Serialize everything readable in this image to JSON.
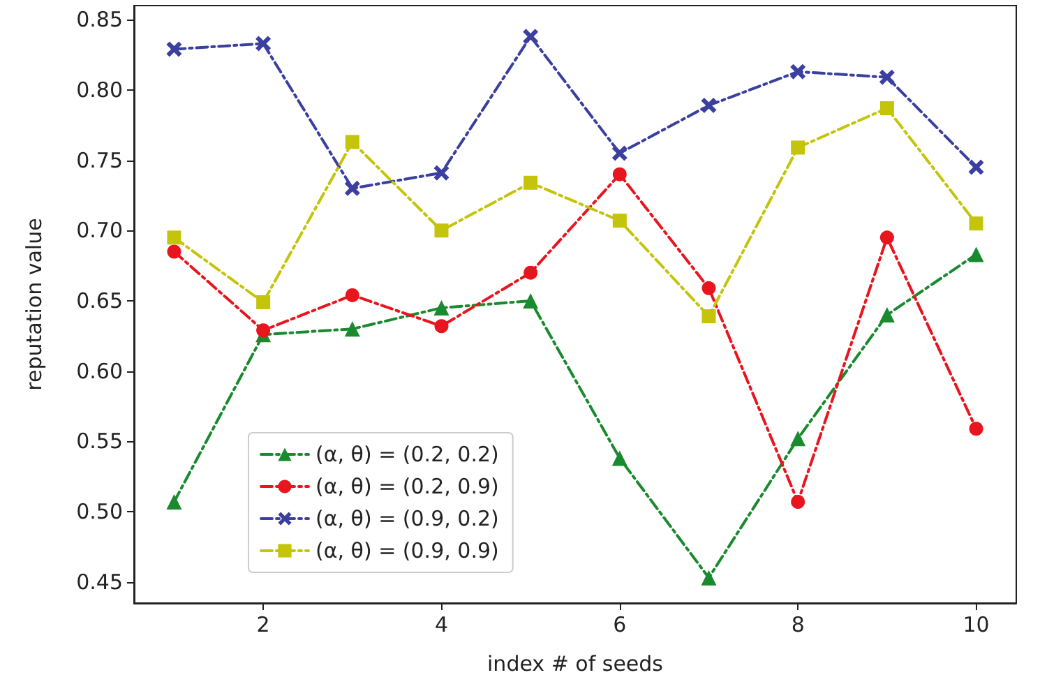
{
  "chart_data": {
    "type": "line",
    "xlabel": "index # of seeds",
    "ylabel": "reputation value",
    "x": [
      1,
      2,
      3,
      4,
      5,
      6,
      7,
      8,
      9,
      10
    ],
    "series": [
      {
        "name": "(α, θ) = (0.2, 0.2)",
        "color": "#1a8a2e",
        "marker": "triangle",
        "values": [
          0.507,
          0.626,
          0.63,
          0.645,
          0.65,
          0.538,
          0.453,
          0.552,
          0.64,
          0.683
        ]
      },
      {
        "name": "(α, θ) = (0.2, 0.9)",
        "color": "#e8141e",
        "marker": "circle",
        "values": [
          0.685,
          0.629,
          0.654,
          0.632,
          0.67,
          0.74,
          0.659,
          0.507,
          0.695,
          0.559
        ]
      },
      {
        "name": "(α, θ) = (0.9, 0.2)",
        "color": "#3a3fa0",
        "marker": "cross",
        "values": [
          0.829,
          0.833,
          0.73,
          0.741,
          0.838,
          0.755,
          0.789,
          0.813,
          0.809,
          0.745
        ]
      },
      {
        "name": "(α, θ) = (0.9, 0.9)",
        "color": "#c4c40a",
        "marker": "square",
        "values": [
          0.695,
          0.649,
          0.763,
          0.7,
          0.734,
          0.707,
          0.639,
          0.759,
          0.787,
          0.705
        ]
      }
    ],
    "xlim": [
      0.55,
      10.45
    ],
    "xticks": [
      2,
      4,
      6,
      8,
      10
    ],
    "ylim": [
      0.435,
      0.86
    ],
    "yticks": [
      0.45,
      {
        "value": 0.5,
        "label": "0.50"
      },
      0.55,
      {
        "value": 0.6,
        "label": "0.60"
      },
      0.65,
      {
        "value": 0.7,
        "label": "0.70"
      },
      0.75,
      {
        "value": 0.8,
        "label": "0.80"
      },
      0.85
    ],
    "grid": false,
    "legend": "bottom left",
    "line_style": "dashed"
  }
}
